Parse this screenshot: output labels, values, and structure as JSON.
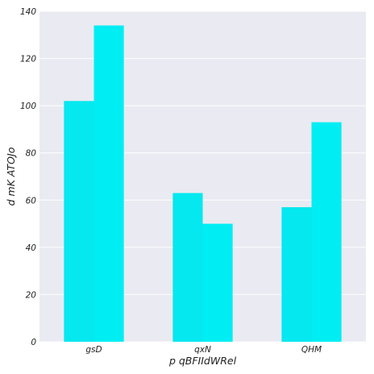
{
  "chart_data": {
    "type": "bar",
    "title": "",
    "xlabel": "p qBFIIdWRel",
    "ylabel": "d mK ATOJo",
    "categories": [
      "gsD",
      "qxN",
      "QHM"
    ],
    "series": [
      {
        "values": [
          102,
          63,
          57
        ]
      },
      {
        "values": [
          134,
          50,
          93
        ]
      }
    ],
    "ylim": [
      0,
      140
    ],
    "yticks": [
      0,
      20,
      40,
      60,
      80,
      100,
      120,
      140
    ],
    "grid": true,
    "legend": "none",
    "colors": {
      "background": "#eaeaf2",
      "grid": "#ffffff",
      "series": [
        "#05e8ef",
        "#00eef3"
      ]
    }
  }
}
